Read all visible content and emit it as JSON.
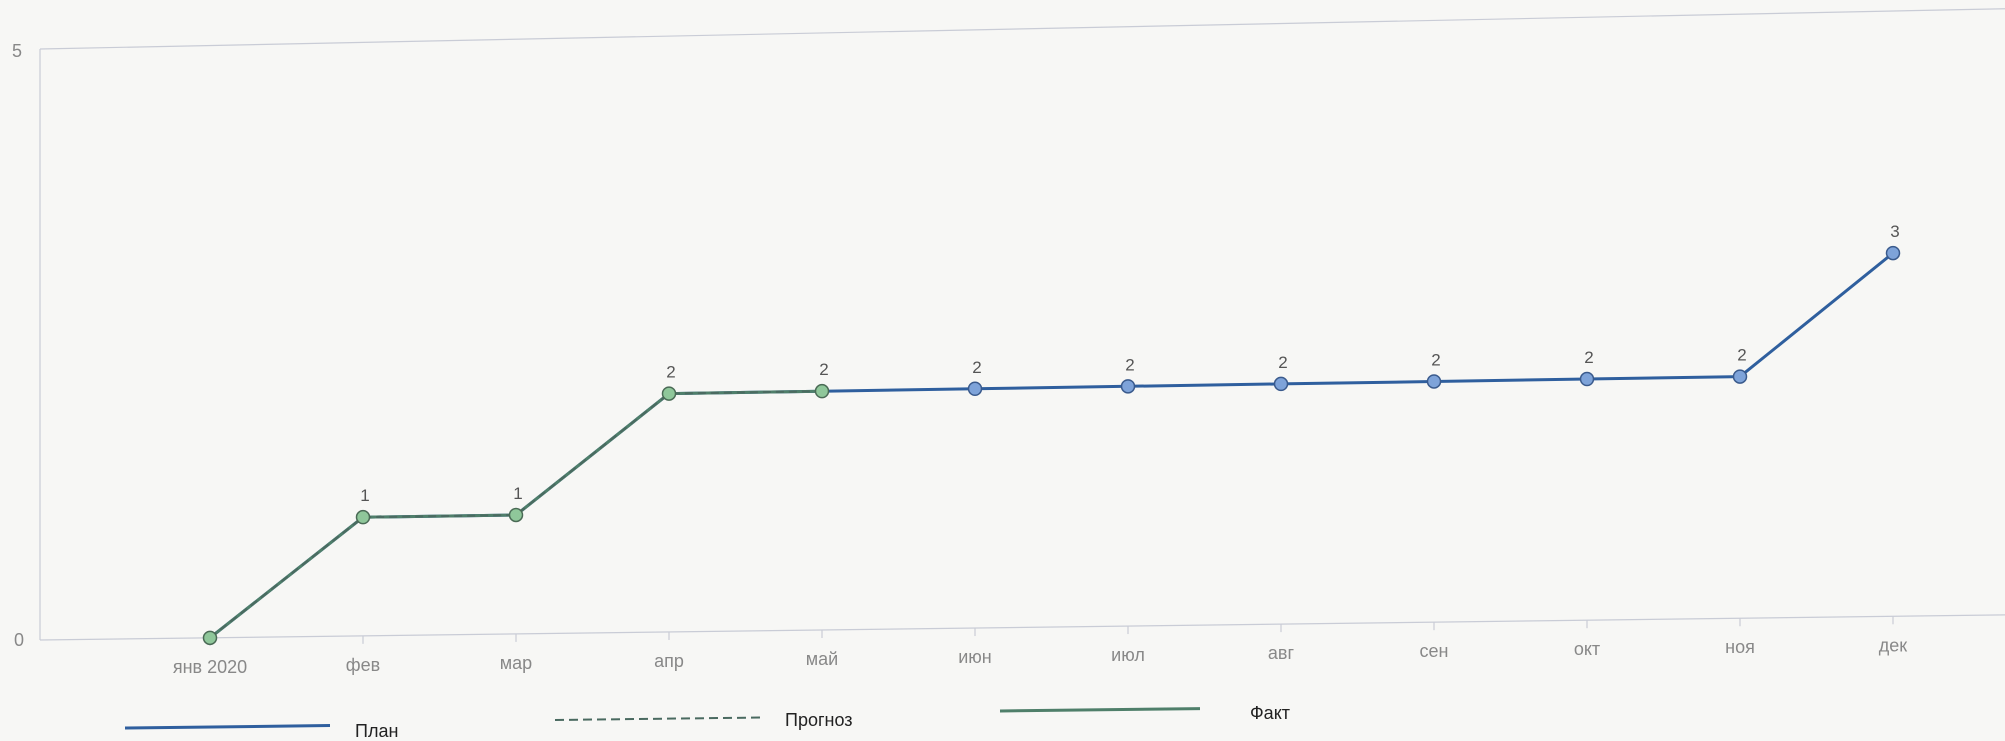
{
  "chart_data": {
    "type": "line",
    "categories": [
      "янв 2020",
      "фев",
      "мар",
      "апр",
      "май",
      "июн",
      "июл",
      "авг",
      "сен",
      "окт",
      "ноя",
      "дек"
    ],
    "ylim": [
      0,
      5
    ],
    "y_ticks": [
      "0",
      "5"
    ],
    "grid": false,
    "legend_position": "bottom",
    "series": [
      {
        "name": "План",
        "color": "#2f5f9e",
        "dash": "solid",
        "values": [
          0,
          1,
          1,
          2,
          2,
          2,
          2,
          2,
          2,
          2,
          2,
          3
        ],
        "point_labels": [
          "",
          "1",
          "1",
          "2",
          "2",
          "2",
          "2",
          "2",
          "2",
          "2",
          "2",
          "3"
        ]
      },
      {
        "name": "Прогноз",
        "color": "#4a6a60",
        "dash": "dashed",
        "values": [
          0,
          1,
          1,
          2,
          2,
          null,
          null,
          null,
          null,
          null,
          null,
          null
        ]
      },
      {
        "name": "Факт",
        "color": "#4f7f6a",
        "dash": "solid",
        "values": [
          0,
          1,
          1,
          2,
          2,
          null,
          null,
          null,
          null,
          null,
          null,
          null
        ]
      }
    ],
    "marker_colors": {
      "fact": "#8fc79a",
      "plan": "#7ea3d9"
    }
  }
}
